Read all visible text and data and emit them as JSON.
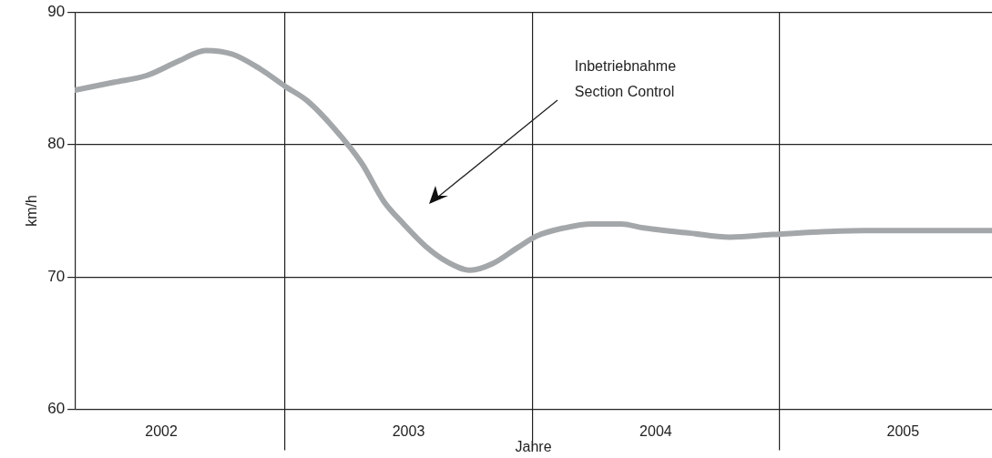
{
  "chart_data": {
    "type": "line",
    "xlabel": "Jahre",
    "ylabel": "km/h",
    "x": [
      2002.15,
      2002.31,
      2002.44,
      2002.57,
      2002.68,
      2002.79,
      2002.9,
      2003.0,
      2003.09,
      2003.2,
      2003.31,
      2003.4,
      2003.48,
      2003.57,
      2003.66,
      2003.75,
      2003.84,
      2003.94,
      2004.02,
      2004.13,
      2004.24,
      2004.36,
      2004.45,
      2004.64,
      2004.8,
      2004.97,
      2005.16,
      2005.34,
      2005.86
    ],
    "series": [
      {
        "color": "#a4a7aa",
        "values": [
          84.1,
          84.7,
          85.2,
          86.3,
          87.1,
          86.8,
          85.7,
          84.4,
          83.3,
          81.2,
          78.6,
          75.7,
          74.0,
          72.3,
          71.1,
          70.5,
          71.0,
          72.2,
          73.1,
          73.7,
          74.0,
          74.0,
          73.7,
          73.3,
          73.0,
          73.2,
          73.4,
          73.5,
          73.5
        ]
      }
    ],
    "xlim": [
      2002.15,
      2005.86
    ],
    "xticks": [
      {
        "value": 2002.5,
        "label": "2002"
      },
      {
        "value": 2003,
        "label": null
      },
      {
        "value": 2003.5,
        "label": "2003"
      },
      {
        "value": 2004,
        "label": null
      },
      {
        "value": 2004.5,
        "label": "2004"
      },
      {
        "value": 2005,
        "label": null
      },
      {
        "value": 2005.5,
        "label": "2005"
      }
    ],
    "ylim": [
      60,
      90
    ],
    "yticks": [
      60,
      70,
      80,
      90
    ],
    "grid": true,
    "marker": "none",
    "line_style": "solid",
    "annotations": [
      "Inbetriebnahme\nSection Control"
    ]
  }
}
